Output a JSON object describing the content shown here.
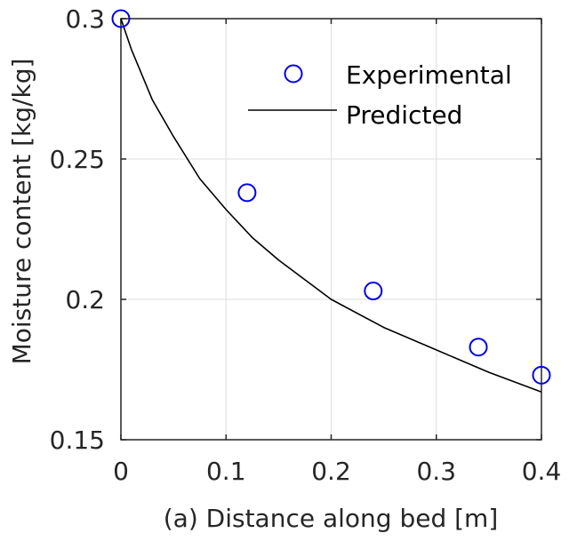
{
  "chart_data": {
    "type": "scatter",
    "title": "",
    "xlabel": "(a) Distance along bed [m]",
    "ylabel": "Moisture content [kg/kg]",
    "xlim": [
      0,
      0.4
    ],
    "ylim": [
      0.15,
      0.3
    ],
    "xticks": [
      0,
      0.1,
      0.2,
      0.3,
      0.4
    ],
    "xtick_labels": [
      "0",
      "0.1",
      "0.2",
      "0.3",
      "0.4"
    ],
    "yticks": [
      0.15,
      0.2,
      0.25,
      0.3
    ],
    "ytick_labels": [
      "0.15",
      "0.2",
      "0.25",
      "0.3"
    ],
    "grid": true,
    "legend_position": "top-right",
    "series": [
      {
        "name": "Experimental",
        "kind": "markers",
        "marker": "circle",
        "color": "#0000e6",
        "x": [
          0,
          0.12,
          0.24,
          0.34,
          0.4
        ],
        "y": [
          0.3,
          0.238,
          0.203,
          0.183,
          0.173
        ]
      },
      {
        "name": "Predicted",
        "kind": "line",
        "color": "#000000",
        "x": [
          0,
          0.01,
          0.02,
          0.03,
          0.05,
          0.075,
          0.1,
          0.125,
          0.15,
          0.175,
          0.2,
          0.25,
          0.3,
          0.35,
          0.4
        ],
        "y": [
          0.3,
          0.289,
          0.28,
          0.271,
          0.258,
          0.243,
          0.232,
          0.222,
          0.214,
          0.207,
          0.2,
          0.19,
          0.182,
          0.174,
          0.167
        ]
      }
    ]
  }
}
